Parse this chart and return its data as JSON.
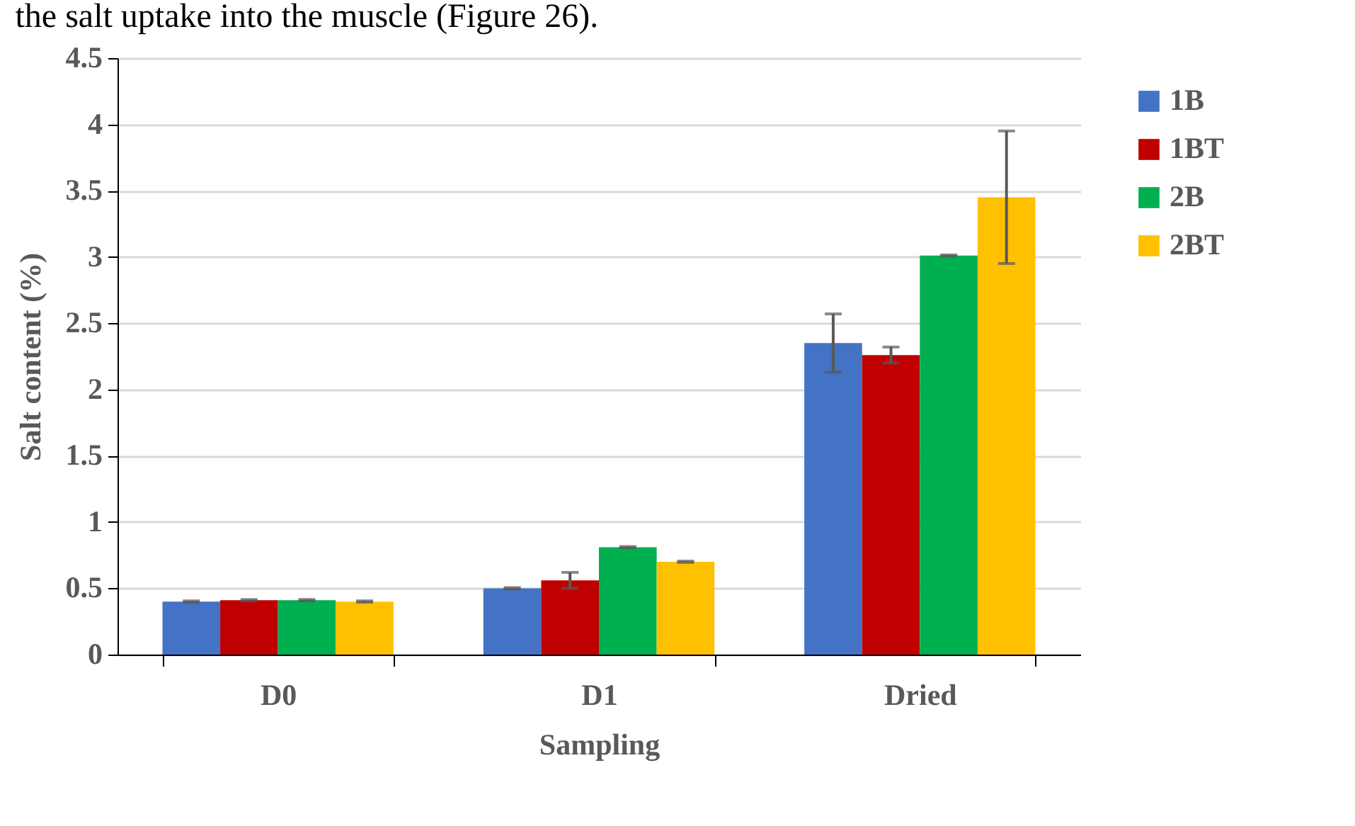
{
  "chart_data": {
    "type": "bar",
    "xlabel": "Sampling",
    "ylabel": "Salt content (%)",
    "annotations": [
      "the salt uptake into the muscle (Figure 26)."
    ],
    "categories": [
      "D0",
      "D1",
      "Dried"
    ],
    "series": [
      {
        "name": "1B",
        "color": "#4472c4",
        "values": [
          0.4,
          0.5,
          2.35
        ],
        "errors": [
          0.005,
          0.005,
          0.22
        ]
      },
      {
        "name": "1BT",
        "color": "#c00000",
        "values": [
          0.41,
          0.56,
          2.26
        ],
        "errors": [
          0.005,
          0.06,
          0.06
        ]
      },
      {
        "name": "2B",
        "color": "#00b050",
        "values": [
          0.41,
          0.81,
          3.01
        ],
        "errors": [
          0.005,
          0.005,
          0.005
        ]
      },
      {
        "name": "2BT",
        "color": "#ffc000",
        "values": [
          0.4,
          0.7,
          3.45
        ],
        "errors": [
          0.005,
          0.005,
          0.5
        ]
      }
    ],
    "ylim": [
      0,
      4.5
    ],
    "yticks": [
      0,
      0.5,
      1,
      1.5,
      2,
      2.5,
      3,
      3.5,
      4,
      4.5
    ],
    "grid": "y",
    "legend": "right"
  }
}
